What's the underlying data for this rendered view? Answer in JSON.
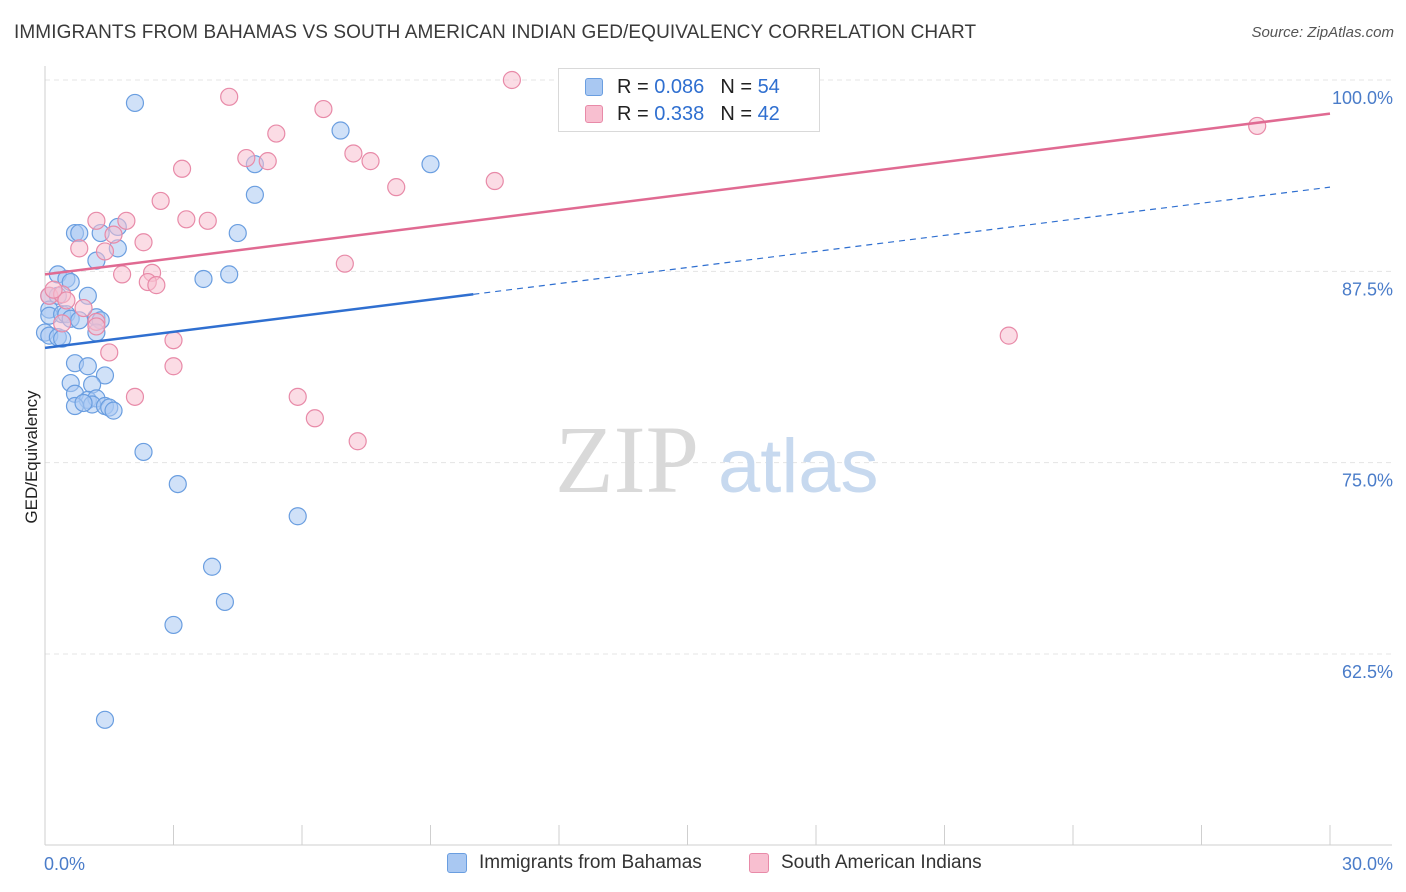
{
  "header": {
    "title": "IMMIGRANTS FROM BAHAMAS VS SOUTH AMERICAN INDIAN GED/EQUIVALENCY CORRELATION CHART",
    "source": "Source: ZipAtlas.com"
  },
  "watermark": {
    "zip": "ZIP",
    "atlas": "atlas"
  },
  "legend": {
    "rows": [
      {
        "r_label": "R =",
        "r_value": "0.086",
        "n_label": "N =",
        "n_value": "54",
        "color": "#a9c8f2",
        "border": "#6a9ee0"
      },
      {
        "r_label": "R =",
        "r_value": "0.338",
        "n_label": "N =",
        "n_value": "42",
        "color": "#f8bfd0",
        "border": "#e88aa8"
      }
    ]
  },
  "bottom_legend": {
    "items": [
      {
        "label": "Immigrants from Bahamas",
        "color": "#a9c8f2",
        "border": "#6a9ee0"
      },
      {
        "label": "South American Indians",
        "color": "#f8bfd0",
        "border": "#e88aa8"
      }
    ]
  },
  "chart_data": {
    "type": "scatter",
    "title": "IMMIGRANTS FROM BAHAMAS VS SOUTH AMERICAN INDIAN GED/EQUIVALENCY CORRELATION CHART",
    "xlabel": "",
    "ylabel": "GED/Equivalency",
    "xlim": [
      0.0,
      30.0
    ],
    "ylim": [
      50.0,
      101.5
    ],
    "x_tick_labels": [
      "0.0%",
      "30.0%"
    ],
    "y_ticks": [
      62.5,
      75.0,
      87.5,
      100.0
    ],
    "y_tick_labels": [
      "62.5%",
      "75.0%",
      "87.5%",
      "100.0%"
    ],
    "grid": true,
    "series": [
      {
        "name": "Immigrants from Bahamas",
        "color": "#6a9ee0",
        "fill": "#a9c8f2",
        "points": [
          [
            2.1,
            98.5
          ],
          [
            6.9,
            96.7
          ],
          [
            9.0,
            94.5
          ],
          [
            4.9,
            94.5
          ],
          [
            4.9,
            92.5
          ],
          [
            1.7,
            90.4
          ],
          [
            0.7,
            90.0
          ],
          [
            0.8,
            90.0
          ],
          [
            1.3,
            90.0
          ],
          [
            4.5,
            90.0
          ],
          [
            1.7,
            89.0
          ],
          [
            1.2,
            88.2
          ],
          [
            3.7,
            87.0
          ],
          [
            4.3,
            87.3
          ],
          [
            0.3,
            87.3
          ],
          [
            0.5,
            87.0
          ],
          [
            0.6,
            86.8
          ],
          [
            0.1,
            85.9
          ],
          [
            0.3,
            85.9
          ],
          [
            1.0,
            85.9
          ],
          [
            0.1,
            85.0
          ],
          [
            0.1,
            84.6
          ],
          [
            0.4,
            84.7
          ],
          [
            0.5,
            84.7
          ],
          [
            0.6,
            84.4
          ],
          [
            0.8,
            84.3
          ],
          [
            1.2,
            84.5
          ],
          [
            1.3,
            84.3
          ],
          [
            1.2,
            83.5
          ],
          [
            0.0,
            83.5
          ],
          [
            0.1,
            83.3
          ],
          [
            0.3,
            83.2
          ],
          [
            0.4,
            83.1
          ],
          [
            0.7,
            81.5
          ],
          [
            1.0,
            81.3
          ],
          [
            1.4,
            80.7
          ],
          [
            0.6,
            80.2
          ],
          [
            1.1,
            80.1
          ],
          [
            0.7,
            79.5
          ],
          [
            1.0,
            79.1
          ],
          [
            1.2,
            79.2
          ],
          [
            0.7,
            78.7
          ],
          [
            1.1,
            78.8
          ],
          [
            1.4,
            78.7
          ],
          [
            1.5,
            78.6
          ],
          [
            1.6,
            78.4
          ],
          [
            2.3,
            75.7
          ],
          [
            3.1,
            73.6
          ],
          [
            5.9,
            71.5
          ],
          [
            3.9,
            68.2
          ],
          [
            4.2,
            65.9
          ],
          [
            3.0,
            64.4
          ],
          [
            1.4,
            58.2
          ],
          [
            0.9,
            78.9
          ]
        ]
      },
      {
        "name": "South American Indians",
        "color": "#e88aa8",
        "fill": "#f8bfd0",
        "points": [
          [
            10.9,
            100.0
          ],
          [
            4.3,
            98.9
          ],
          [
            6.5,
            98.1
          ],
          [
            5.4,
            96.5
          ],
          [
            7.2,
            95.2
          ],
          [
            4.7,
            94.9
          ],
          [
            5.2,
            94.7
          ],
          [
            7.6,
            94.7
          ],
          [
            3.2,
            94.2
          ],
          [
            8.2,
            93.0
          ],
          [
            10.5,
            93.4
          ],
          [
            2.7,
            92.1
          ],
          [
            1.2,
            90.8
          ],
          [
            1.9,
            90.8
          ],
          [
            3.3,
            90.9
          ],
          [
            3.8,
            90.8
          ],
          [
            1.6,
            89.9
          ],
          [
            2.3,
            89.4
          ],
          [
            0.8,
            89.0
          ],
          [
            1.4,
            88.8
          ],
          [
            7.0,
            88.0
          ],
          [
            1.8,
            87.3
          ],
          [
            2.5,
            87.4
          ],
          [
            2.4,
            86.8
          ],
          [
            2.6,
            86.6
          ],
          [
            0.1,
            85.9
          ],
          [
            0.4,
            86.0
          ],
          [
            0.5,
            85.6
          ],
          [
            0.9,
            85.1
          ],
          [
            0.4,
            84.1
          ],
          [
            1.2,
            84.2
          ],
          [
            3.0,
            83.0
          ],
          [
            1.5,
            82.2
          ],
          [
            3.0,
            81.3
          ],
          [
            2.1,
            79.3
          ],
          [
            5.9,
            79.3
          ],
          [
            6.3,
            77.9
          ],
          [
            7.3,
            76.4
          ],
          [
            22.5,
            83.3
          ],
          [
            28.3,
            97.0
          ],
          [
            0.2,
            86.3
          ],
          [
            1.2,
            83.9
          ]
        ]
      }
    ],
    "trend_lines": [
      {
        "series": "Immigrants from Bahamas",
        "color": "#2f6fd0",
        "solid_from": [
          0.0,
          82.5
        ],
        "solid_to": [
          10.0,
          86.0
        ],
        "dashed_to": [
          30.0,
          93.0
        ]
      },
      {
        "series": "South American Indians",
        "color": "#e06a92",
        "from": [
          0.0,
          87.3
        ],
        "to": [
          30.0,
          97.8
        ]
      }
    ]
  }
}
